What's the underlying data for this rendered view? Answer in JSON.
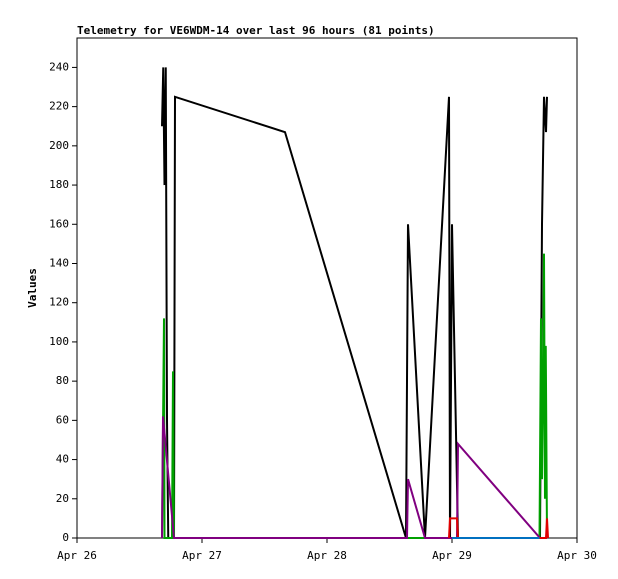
{
  "chart_data": {
    "type": "line",
    "title": "Telemetry for VE6WDM-14 over last 96 hours (81 points)",
    "y_label": "Values",
    "xlim": [
      0,
      4
    ],
    "xticks": [
      {
        "value": 0,
        "label": "Apr 26"
      },
      {
        "value": 1,
        "label": "Apr 27"
      },
      {
        "value": 2,
        "label": "Apr 28"
      },
      {
        "value": 3,
        "label": "Apr 29"
      },
      {
        "value": 4,
        "label": "Apr 30"
      }
    ],
    "ylim": [
      0,
      255
    ],
    "yticks": [
      0,
      20,
      40,
      60,
      80,
      100,
      120,
      140,
      160,
      180,
      200,
      220,
      240
    ],
    "series": [
      {
        "color": "#000000",
        "x": [
          0.68,
          0.69,
          0.7,
          0.71,
          0.72,
          0.73,
          0.776,
          0.784,
          1.664,
          2.632,
          2.648,
          2.784,
          2.976,
          2.984,
          3.0,
          3.048,
          3.704,
          3.72,
          3.736,
          3.752,
          3.76
        ],
        "values": [
          210,
          240,
          180,
          240,
          60,
          0,
          0,
          225,
          207,
          0,
          160,
          0,
          225,
          0,
          160,
          0,
          0,
          160,
          225,
          207,
          225
        ]
      },
      {
        "color": "#00a000",
        "x": [
          0.68,
          0.696,
          0.7,
          0.76,
          0.768,
          0.776,
          3.7,
          3.712,
          3.72,
          3.728,
          3.736,
          3.744,
          3.75,
          3.76
        ],
        "values": [
          0,
          112,
          0,
          0,
          85,
          0,
          0,
          112,
          30,
          72,
          145,
          20,
          98,
          0
        ]
      },
      {
        "color": "#800080",
        "x": [
          0.68,
          0.688,
          0.776,
          2.64,
          2.648,
          2.784,
          3.04,
          3.048,
          3.704,
          3.76
        ],
        "values": [
          0,
          62,
          0,
          0,
          30,
          0,
          0,
          48,
          0,
          0
        ]
      },
      {
        "color": "#e00000",
        "x": [
          2.976,
          2.984,
          3.04,
          3.048,
          3.752,
          3.76,
          3.768
        ],
        "values": [
          0,
          10,
          10,
          0,
          0,
          10,
          0
        ]
      },
      {
        "color": "#0070c0",
        "x": [
          3.0,
          3.7
        ],
        "values": [
          0,
          0
        ]
      }
    ]
  }
}
